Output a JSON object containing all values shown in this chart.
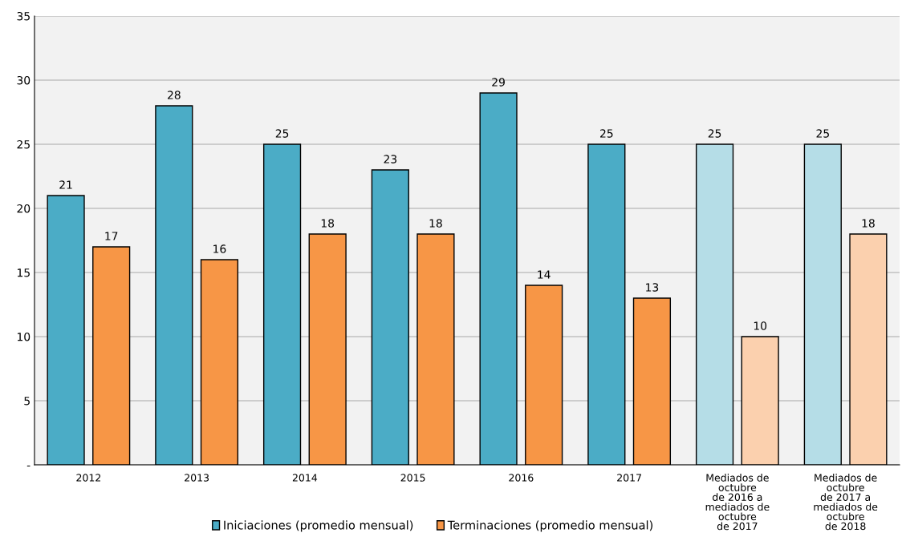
{
  "chart_data": {
    "type": "bar",
    "categories": [
      "2012",
      "2013",
      "2014",
      "2015",
      "2016",
      "2017",
      "Mediados de\noctubre\nde 2016 a\nmediados de\noctubre\nde 2017",
      "Mediados de\noctubre\nde 2017 a\nmediados de\noctubre\nde 2018"
    ],
    "series": [
      {
        "name": "Iniciaciones (promedio mensual)",
        "color": "#4bacc6",
        "colors": [
          "#4bacc6",
          "#4bacc6",
          "#4bacc6",
          "#4bacc6",
          "#4bacc6",
          "#4bacc6",
          "#b5dde7",
          "#b5dde7"
        ],
        "values": [
          21,
          28,
          25,
          23,
          29,
          25,
          25,
          25
        ]
      },
      {
        "name": "Terminaciones (promedio mensual)",
        "color": "#f79646",
        "colors": [
          "#f79646",
          "#f79646",
          "#f79646",
          "#f79646",
          "#f79646",
          "#f79646",
          "#fbd0ae",
          "#fbd0ae"
        ],
        "values": [
          17,
          16,
          18,
          18,
          14,
          13,
          10,
          18
        ]
      }
    ],
    "ylim": [
      0,
      35
    ],
    "yticks": [
      {
        "value": 0,
        "label": "-"
      },
      5,
      10,
      15,
      20,
      25,
      30,
      35
    ],
    "grid": "y",
    "legend": "bottom",
    "data_labels": true
  }
}
